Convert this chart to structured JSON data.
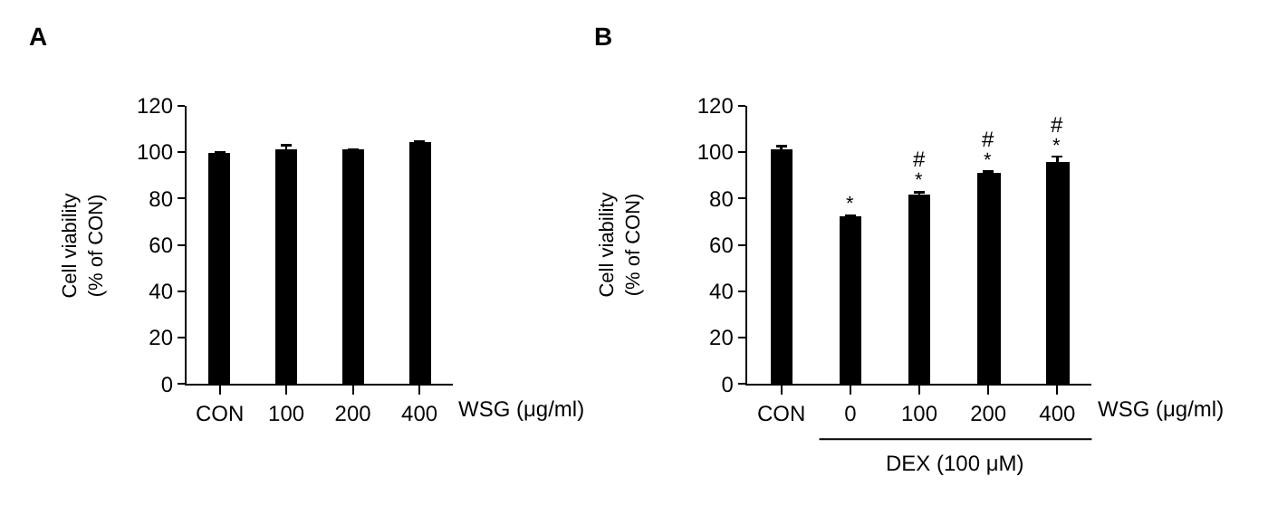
{
  "chart_data": [
    {
      "type": "bar",
      "title": "A",
      "ylabel": "Cell viability\n(% of CON)",
      "xlabel": "WSG (μg/ml)",
      "categories": [
        "CON",
        "100",
        "200",
        "400"
      ],
      "values": [
        100,
        101,
        101,
        104
      ],
      "errors": [
        0,
        2,
        0,
        0.5
      ],
      "color": "#000000",
      "ylim": [
        0,
        120
      ],
      "yticks": [
        0,
        20,
        40,
        60,
        80,
        100,
        120
      ]
    },
    {
      "type": "bar",
      "title": "B",
      "ylabel": "Cell viability\n(% of CON)",
      "xlabel": "WSG (μg/ml)",
      "categories": [
        "CON",
        "0",
        "100",
        "200",
        "400"
      ],
      "values": [
        101,
        72,
        82,
        91,
        96
      ],
      "errors": [
        1.5,
        0.7,
        0.7,
        0.7,
        2
      ],
      "color": "#000000",
      "ylim": [
        0,
        120
      ],
      "yticks": [
        0,
        20,
        40,
        60,
        80,
        100,
        120
      ],
      "annotations": [
        {
          "text": "*",
          "x": "0",
          "y": 72
        },
        {
          "text": "*",
          "x": "100",
          "y": 82
        },
        {
          "text": "#",
          "x": "100",
          "y": 82
        },
        {
          "text": "*",
          "x": "200",
          "y": 91
        },
        {
          "text": "#",
          "x": "200",
          "y": 91
        },
        {
          "text": "*",
          "x": "400",
          "y": 96
        },
        {
          "text": "#",
          "x": "400",
          "y": 96
        },
        "DEX (100 μM)"
      ]
    }
  ]
}
